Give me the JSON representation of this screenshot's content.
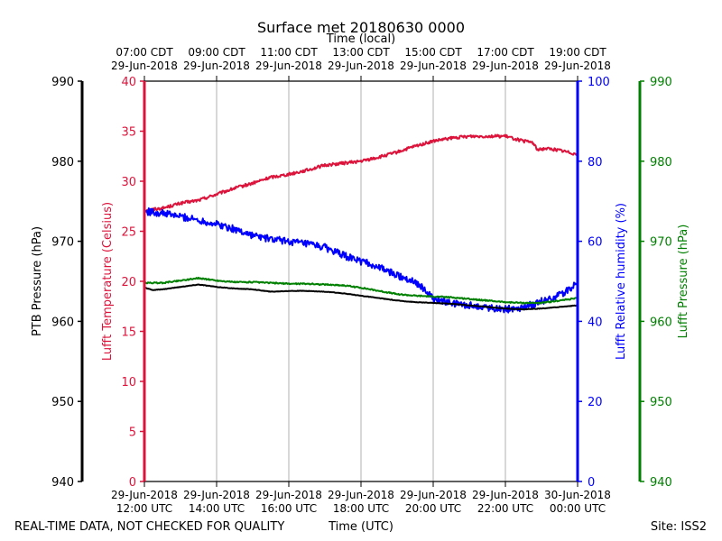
{
  "chart_data": {
    "type": "line",
    "title": "Surface met 20180630 0000",
    "top_xlabel": "Time (local)",
    "xlabel": "Time (UTC)",
    "footer_left": "REAL-TIME DATA, NOT CHECKED FOR QUALITY",
    "footer_right": "Site: ISS2",
    "x_range_hours_utc": [
      12,
      24
    ],
    "x_ticks": [
      {
        "hour": 12,
        "utc_date": "29-Jun-2018",
        "utc_time": "12:00 UTC",
        "local_time": "07:00 CDT",
        "local_date": "29-Jun-2018"
      },
      {
        "hour": 14,
        "utc_date": "29-Jun-2018",
        "utc_time": "14:00 UTC",
        "local_time": "09:00 CDT",
        "local_date": "29-Jun-2018"
      },
      {
        "hour": 16,
        "utc_date": "29-Jun-2018",
        "utc_time": "16:00 UTC",
        "local_time": "11:00 CDT",
        "local_date": "29-Jun-2018"
      },
      {
        "hour": 18,
        "utc_date": "29-Jun-2018",
        "utc_time": "18:00 UTC",
        "local_time": "13:00 CDT",
        "local_date": "29-Jun-2018"
      },
      {
        "hour": 20,
        "utc_date": "29-Jun-2018",
        "utc_time": "20:00 UTC",
        "local_time": "15:00 CDT",
        "local_date": "29-Jun-2018"
      },
      {
        "hour": 22,
        "utc_date": "29-Jun-2018",
        "utc_time": "22:00 UTC",
        "local_time": "17:00 CDT",
        "local_date": "29-Jun-2018"
      },
      {
        "hour": 24,
        "utc_date": "30-Jun-2018",
        "utc_time": "00:00 UTC",
        "local_time": "19:00 CDT",
        "local_date": "29-Jun-2018"
      }
    ],
    "axes": {
      "ptb_pressure": {
        "label": "PTB Pressure (hPa)",
        "range": [
          940,
          990
        ],
        "ticks": [
          940,
          950,
          960,
          970,
          980,
          990
        ],
        "color": "#000000"
      },
      "temperature": {
        "label": "Lufft Temperature (Celsius)",
        "range": [
          0,
          40
        ],
        "ticks": [
          0,
          5,
          10,
          15,
          20,
          25,
          30,
          35,
          40
        ],
        "color": "#dc143c"
      },
      "humidity": {
        "label": "Lufft Relative humidity (%)",
        "range": [
          0,
          100
        ],
        "ticks": [
          0,
          20,
          40,
          60,
          80,
          100
        ],
        "color": "#0000ff"
      },
      "lufft_pressure": {
        "label": "Lufft Pressure (hPa)",
        "range": [
          940,
          990
        ],
        "ticks": [
          940,
          950,
          960,
          970,
          980,
          990
        ],
        "color": "#008000"
      }
    },
    "series": [
      {
        "name": "Lufft Temperature",
        "axis": "temperature",
        "color": "#dc143c",
        "noise": 0.15,
        "points": [
          [
            12.0,
            27.1
          ],
          [
            12.5,
            27.3
          ],
          [
            13.0,
            27.8
          ],
          [
            13.5,
            28.1
          ],
          [
            14.0,
            28.7
          ],
          [
            14.5,
            29.3
          ],
          [
            15.0,
            29.8
          ],
          [
            15.5,
            30.4
          ],
          [
            16.0,
            30.7
          ],
          [
            16.5,
            31.1
          ],
          [
            17.0,
            31.6
          ],
          [
            17.5,
            31.8
          ],
          [
            18.0,
            32.0
          ],
          [
            18.5,
            32.4
          ],
          [
            19.0,
            32.9
          ],
          [
            19.5,
            33.5
          ],
          [
            20.0,
            34.0
          ],
          [
            20.5,
            34.3
          ],
          [
            21.0,
            34.5
          ],
          [
            21.5,
            34.5
          ],
          [
            22.0,
            34.5
          ],
          [
            22.5,
            34.0
          ],
          [
            22.75,
            33.9
          ],
          [
            22.9,
            33.1
          ],
          [
            23.1,
            33.3
          ],
          [
            23.5,
            33.1
          ],
          [
            23.75,
            32.9
          ],
          [
            24.0,
            32.7
          ]
        ]
      },
      {
        "name": "Lufft Relative humidity",
        "axis": "humidity",
        "color": "#0000ff",
        "noise": 0.9,
        "points": [
          [
            12.0,
            67.5
          ],
          [
            12.5,
            67.0
          ],
          [
            13.0,
            66.2
          ],
          [
            13.5,
            65.3
          ],
          [
            14.0,
            64.3
          ],
          [
            14.5,
            63.0
          ],
          [
            15.0,
            61.5
          ],
          [
            15.5,
            60.5
          ],
          [
            16.0,
            60.0
          ],
          [
            16.5,
            59.3
          ],
          [
            17.0,
            58.5
          ],
          [
            17.5,
            56.5
          ],
          [
            18.0,
            55.0
          ],
          [
            18.5,
            53.5
          ],
          [
            19.0,
            51.5
          ],
          [
            19.5,
            50.0
          ],
          [
            19.75,
            48.0
          ],
          [
            20.0,
            45.5
          ],
          [
            20.5,
            44.5
          ],
          [
            21.0,
            44.0
          ],
          [
            21.5,
            43.5
          ],
          [
            22.0,
            43.0
          ],
          [
            22.5,
            43.5
          ],
          [
            23.0,
            45.0
          ],
          [
            23.5,
            46.5
          ],
          [
            24.0,
            49.5
          ]
        ]
      },
      {
        "name": "Lufft Pressure",
        "axis": "lufft_pressure",
        "color": "#008000",
        "noise": 0.08,
        "points": [
          [
            12.0,
            964.8
          ],
          [
            12.5,
            964.8
          ],
          [
            13.0,
            965.1
          ],
          [
            13.5,
            965.4
          ],
          [
            14.0,
            965.1
          ],
          [
            14.5,
            964.9
          ],
          [
            15.0,
            964.9
          ],
          [
            15.5,
            964.8
          ],
          [
            16.0,
            964.7
          ],
          [
            16.5,
            964.7
          ],
          [
            17.0,
            964.6
          ],
          [
            17.5,
            964.5
          ],
          [
            18.0,
            964.2
          ],
          [
            18.5,
            963.8
          ],
          [
            19.0,
            963.4
          ],
          [
            19.5,
            963.2
          ],
          [
            20.0,
            963.1
          ],
          [
            20.5,
            963.0
          ],
          [
            21.0,
            962.8
          ],
          [
            21.5,
            962.6
          ],
          [
            22.0,
            962.4
          ],
          [
            22.5,
            962.3
          ],
          [
            23.0,
            962.3
          ],
          [
            23.5,
            962.6
          ],
          [
            24.0,
            962.9
          ]
        ]
      },
      {
        "name": "PTB Pressure",
        "axis": "ptb_pressure",
        "color": "#000000",
        "noise": 0.03,
        "points": [
          [
            12.0,
            964.2
          ],
          [
            12.25,
            963.9
          ],
          [
            12.5,
            964.0
          ],
          [
            13.0,
            964.3
          ],
          [
            13.5,
            964.6
          ],
          [
            14.0,
            964.3
          ],
          [
            14.5,
            964.1
          ],
          [
            15.0,
            964.0
          ],
          [
            15.5,
            963.7
          ],
          [
            16.0,
            963.8
          ],
          [
            16.5,
            963.8
          ],
          [
            17.0,
            963.7
          ],
          [
            17.5,
            963.5
          ],
          [
            18.0,
            963.2
          ],
          [
            18.5,
            962.9
          ],
          [
            19.0,
            962.6
          ],
          [
            19.5,
            962.4
          ],
          [
            20.0,
            962.3
          ],
          [
            20.5,
            962.2
          ],
          [
            21.0,
            962.0
          ],
          [
            21.5,
            961.8
          ],
          [
            22.0,
            961.6
          ],
          [
            22.5,
            961.5
          ],
          [
            23.0,
            961.6
          ],
          [
            23.5,
            961.8
          ],
          [
            24.0,
            962.0
          ]
        ]
      }
    ]
  }
}
